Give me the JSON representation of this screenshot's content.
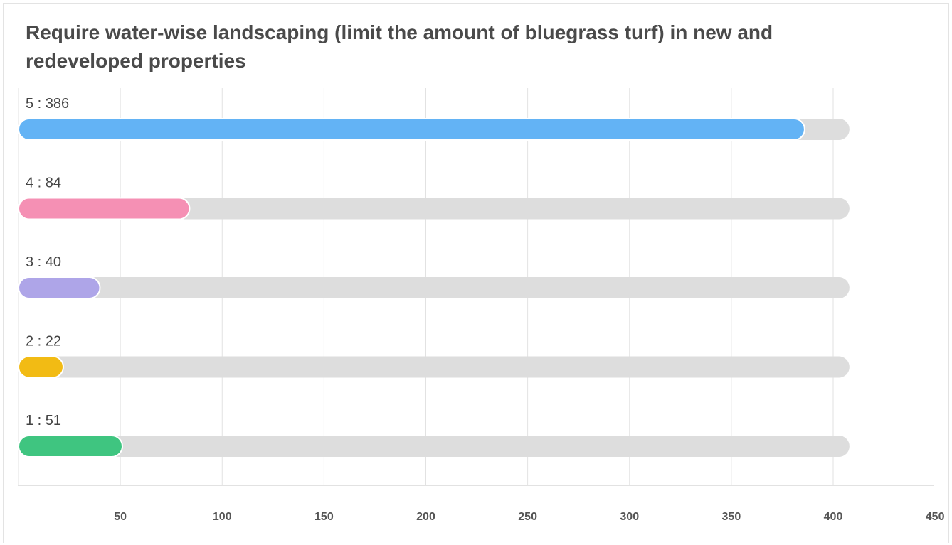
{
  "chart_data": {
    "type": "bar",
    "orientation": "horizontal",
    "title": "Require water-wise landscaping (limit the amount of bluegrass turf) in new and redeveloped properties",
    "categories": [
      "5",
      "4",
      "3",
      "2",
      "1"
    ],
    "values": [
      386,
      84,
      40,
      22,
      51
    ],
    "bar_labels": [
      "5 : 386",
      "4 : 84",
      "3 : 40",
      "2 : 22",
      "1 : 51"
    ],
    "colors": [
      "#63b3f5",
      "#f590b4",
      "#aea5e8",
      "#f2bb14",
      "#3fc580"
    ],
    "track_color": "#dddddd",
    "track_max": 408,
    "xlim": [
      0,
      450
    ],
    "xticks": [
      50,
      100,
      150,
      200,
      250,
      300,
      350,
      400,
      450
    ],
    "xtick_labels": [
      "50",
      "100",
      "150",
      "200",
      "250",
      "300",
      "350",
      "400",
      "450"
    ],
    "grid": true,
    "legend": "none"
  }
}
